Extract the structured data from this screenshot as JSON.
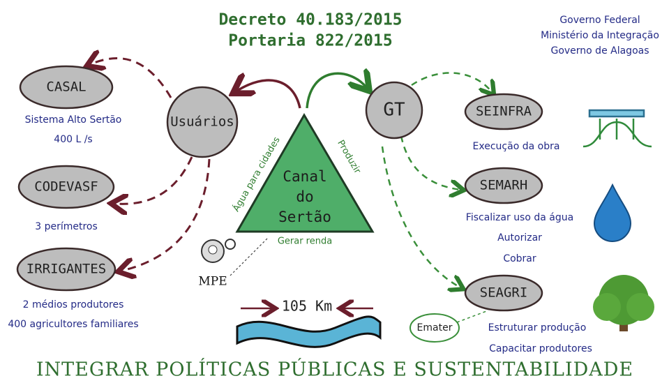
{
  "header": {
    "lines": [
      "Decreto 40.183/2015",
      "Portaria 822/2015"
    ]
  },
  "government": {
    "lines": [
      "Governo Federal",
      "Ministério da Integração",
      "Governo de Alagoas"
    ]
  },
  "center": {
    "lines": [
      "Canal",
      "do",
      "Sertão"
    ],
    "sides": [
      "Água para cidades",
      "Produzir",
      "Gerar renda"
    ]
  },
  "hubs": [
    "Usuários",
    "GT"
  ],
  "agencies": [
    {
      "label": "CASAL",
      "notes": [
        "Sistema Alto Sertão",
        "400 L /s"
      ]
    },
    {
      "label": "CODEVASF",
      "notes": [
        "3 perímetros"
      ]
    },
    {
      "label": "IRRIGANTES",
      "notes": [
        "2 médios produtores",
        "400 agricultores familiares"
      ]
    },
    {
      "label": "SEINFRA",
      "notes": [
        "Execução da obra"
      ]
    },
    {
      "label": "SEMARH",
      "notes": [
        "Fiscalizar uso da água",
        "Autorizar",
        "Cobrar"
      ]
    },
    {
      "label": "SEAGRI",
      "notes": [
        "Estruturar produção",
        "Capacitar produtores"
      ]
    }
  ],
  "mpe": "MPE",
  "emater": "Emater",
  "canal_length": "105 Km",
  "footer": "INTEGRAR POLÍTICAS PÚBLICAS E SUSTENTABILIDADE"
}
